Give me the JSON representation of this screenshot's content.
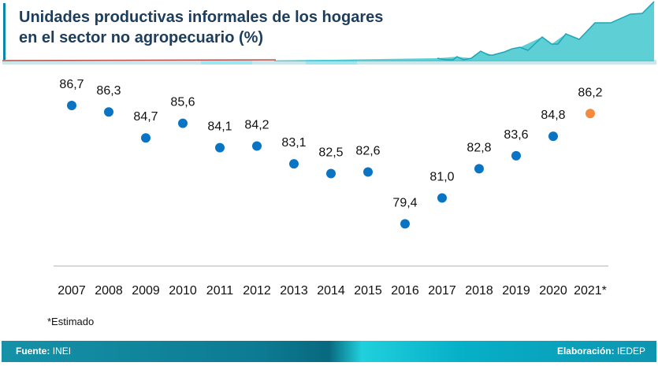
{
  "title_line1": "Unidades productivas informales de los hogares",
  "title_line2": "en el sector no agropecuario (%)",
  "note": "*Estimado",
  "footer": {
    "source_label": "Fuente:",
    "source_value": "INEI",
    "credit_label": "Elaboración:",
    "credit_value": "IEDEP"
  },
  "colors": {
    "actual": "#0a74c4",
    "estimate": "#f58a3c",
    "title": "#1d3d5c"
  },
  "chart_data": {
    "type": "scatter",
    "title": "Unidades productivas informales de los hogares en el sector no agropecuario (%)",
    "categories": [
      "2007",
      "2008",
      "2009",
      "2010",
      "2011",
      "2012",
      "2013",
      "2014",
      "2015",
      "2016",
      "2017",
      "2018",
      "2019",
      "2020",
      "2021*"
    ],
    "values": [
      86.7,
      86.3,
      84.7,
      85.6,
      84.1,
      84.2,
      83.1,
      82.5,
      82.6,
      79.4,
      81.0,
      82.8,
      83.6,
      84.8,
      86.2
    ],
    "labels": [
      "86,7",
      "86,3",
      "84,7",
      "85,6",
      "84,1",
      "84,2",
      "83,1",
      "82,5",
      "82,6",
      "79,4",
      "81,0",
      "82,8",
      "83,6",
      "84,8",
      "86,2"
    ],
    "estimated": [
      false,
      false,
      false,
      false,
      false,
      false,
      false,
      false,
      false,
      false,
      false,
      false,
      false,
      false,
      true
    ],
    "ylim": [
      76.8,
      86.7
    ],
    "grid": false
  }
}
